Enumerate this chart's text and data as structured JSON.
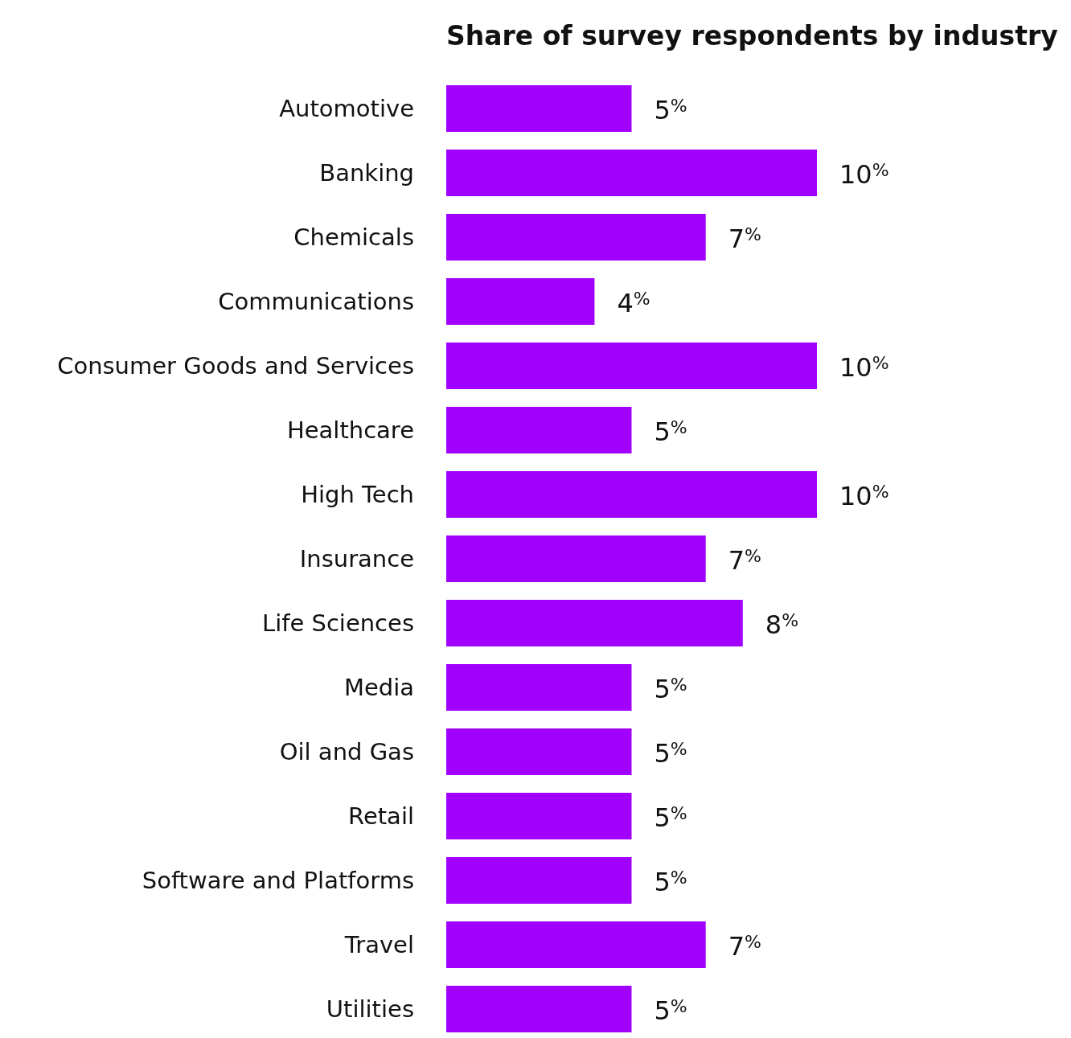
{
  "chart_data": {
    "type": "bar",
    "orientation": "horizontal",
    "title": "Share of survey respondents by industry",
    "categories": [
      "Automotive",
      "Banking",
      "Chemicals",
      "Communications",
      "Consumer Goods and Services",
      "Healthcare",
      "High Tech",
      "Insurance",
      "Life Sciences",
      "Media",
      "Oil and Gas",
      "Retail",
      "Software and Platforms",
      "Travel",
      "Utilities"
    ],
    "values": [
      5,
      10,
      7,
      4,
      10,
      5,
      10,
      7,
      8,
      5,
      5,
      5,
      5,
      7,
      5
    ],
    "value_labels": [
      "5$^{%}$",
      "10$^{%}$",
      "7$^{%}$",
      "4$^{%}$",
      "10$^{%}$",
      "5$^{%}$",
      "10$^{%}$",
      "7$^{%}$",
      "8$^{%}$",
      "5$^{%}$",
      "5$^{%}$",
      "5$^{%}$",
      "5$^{%}$",
      "7$^{%}$",
      "5$^{%}$"
    ],
    "color": "#a100ff",
    "tick_labels": "y"
  }
}
